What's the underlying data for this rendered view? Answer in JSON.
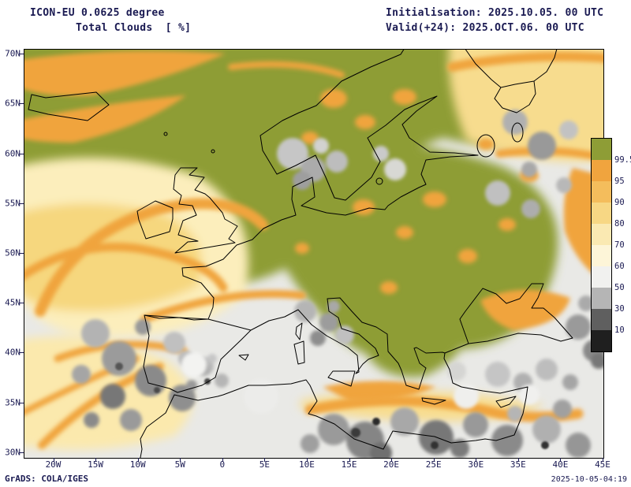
{
  "header": {
    "model_line": "ICON-EU 0.0625 degree",
    "field_line": "Total Clouds  [ %]",
    "init_line": "Initialisation: 2025.10.05. 00 UTC",
    "valid_line": "Valid(+24): 2025.OCT.06. 00 UTC"
  },
  "footer": {
    "left": "GrADS: COLA/IGES",
    "right": "2025-10-05-04:19"
  },
  "chart_data": {
    "type": "heatmap",
    "title": "Total Clouds [ %]",
    "model": "ICON-EU 0.0625 degree",
    "units": "%",
    "x_axis": {
      "range_deg": [
        -23.5,
        45
      ],
      "values_deg": [
        -20,
        -15,
        -10,
        -5,
        0,
        5,
        10,
        15,
        20,
        25,
        30,
        35,
        40,
        45
      ],
      "labels": [
        "20W",
        "15W",
        "10W",
        "5W",
        "0",
        "5E",
        "10E",
        "15E",
        "20E",
        "25E",
        "30E",
        "35E",
        "40E",
        "45E"
      ]
    },
    "y_axis": {
      "range_deg": [
        29.5,
        70.5
      ],
      "values_deg": [
        30,
        35,
        40,
        45,
        50,
        55,
        60,
        65,
        70
      ],
      "labels": [
        "30N",
        "35N",
        "40N",
        "45N",
        "50N",
        "55N",
        "60N",
        "65N",
        "70N"
      ]
    },
    "legend": {
      "units": "%",
      "levels": [
        "99.5",
        "95",
        "90",
        "80",
        "70",
        "60",
        "50",
        "30",
        "10"
      ],
      "band_colors": [
        "#8e9d36",
        "#f0a43e",
        "#f4bd5c",
        "#f7d784",
        "#fae9b2",
        "#fdf5d8",
        "#f1f1ef",
        "#b5b5b5",
        "#5f5f5f",
        "#1f1f1f"
      ]
    },
    "legend_position": "right"
  }
}
